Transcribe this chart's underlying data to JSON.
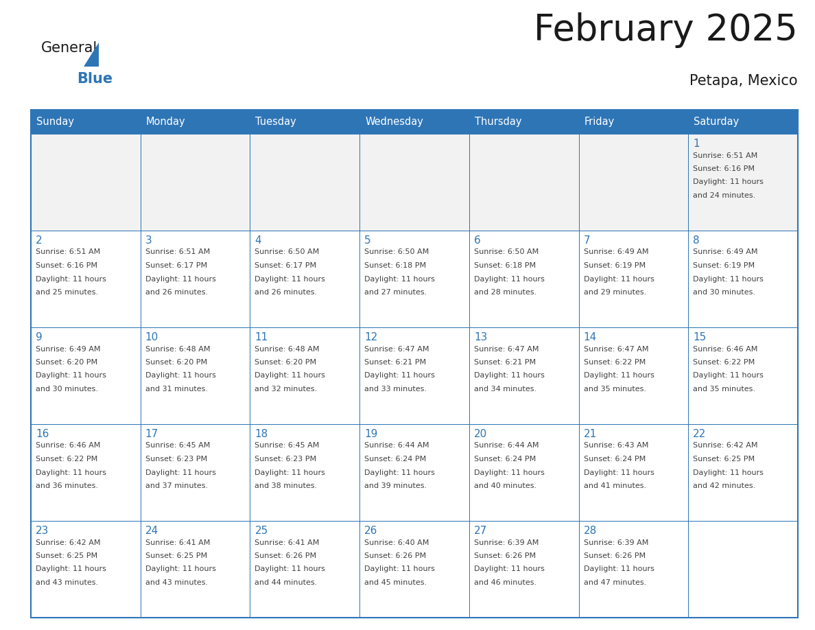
{
  "title": "February 2025",
  "subtitle": "Petapa, Mexico",
  "header_bg_color": "#2E75B6",
  "header_text_color": "#FFFFFF",
  "cell_border_color": "#2E75B6",
  "day_number_color": "#2E75B6",
  "info_text_color": "#404040",
  "background_color": "#FFFFFF",
  "days_of_week": [
    "Sunday",
    "Monday",
    "Tuesday",
    "Wednesday",
    "Thursday",
    "Friday",
    "Saturday"
  ],
  "calendar_data": [
    [
      {
        "day": null,
        "sunrise": null,
        "sunset": null,
        "daylight": null
      },
      {
        "day": null,
        "sunrise": null,
        "sunset": null,
        "daylight": null
      },
      {
        "day": null,
        "sunrise": null,
        "sunset": null,
        "daylight": null
      },
      {
        "day": null,
        "sunrise": null,
        "sunset": null,
        "daylight": null
      },
      {
        "day": null,
        "sunrise": null,
        "sunset": null,
        "daylight": null
      },
      {
        "day": null,
        "sunrise": null,
        "sunset": null,
        "daylight": null
      },
      {
        "day": 1,
        "sunrise": "6:51 AM",
        "sunset": "6:16 PM",
        "daylight": "11 hours and 24 minutes."
      }
    ],
    [
      {
        "day": 2,
        "sunrise": "6:51 AM",
        "sunset": "6:16 PM",
        "daylight": "11 hours and 25 minutes."
      },
      {
        "day": 3,
        "sunrise": "6:51 AM",
        "sunset": "6:17 PM",
        "daylight": "11 hours and 26 minutes."
      },
      {
        "day": 4,
        "sunrise": "6:50 AM",
        "sunset": "6:17 PM",
        "daylight": "11 hours and 26 minutes."
      },
      {
        "day": 5,
        "sunrise": "6:50 AM",
        "sunset": "6:18 PM",
        "daylight": "11 hours and 27 minutes."
      },
      {
        "day": 6,
        "sunrise": "6:50 AM",
        "sunset": "6:18 PM",
        "daylight": "11 hours and 28 minutes."
      },
      {
        "day": 7,
        "sunrise": "6:49 AM",
        "sunset": "6:19 PM",
        "daylight": "11 hours and 29 minutes."
      },
      {
        "day": 8,
        "sunrise": "6:49 AM",
        "sunset": "6:19 PM",
        "daylight": "11 hours and 30 minutes."
      }
    ],
    [
      {
        "day": 9,
        "sunrise": "6:49 AM",
        "sunset": "6:20 PM",
        "daylight": "11 hours and 30 minutes."
      },
      {
        "day": 10,
        "sunrise": "6:48 AM",
        "sunset": "6:20 PM",
        "daylight": "11 hours and 31 minutes."
      },
      {
        "day": 11,
        "sunrise": "6:48 AM",
        "sunset": "6:20 PM",
        "daylight": "11 hours and 32 minutes."
      },
      {
        "day": 12,
        "sunrise": "6:47 AM",
        "sunset": "6:21 PM",
        "daylight": "11 hours and 33 minutes."
      },
      {
        "day": 13,
        "sunrise": "6:47 AM",
        "sunset": "6:21 PM",
        "daylight": "11 hours and 34 minutes."
      },
      {
        "day": 14,
        "sunrise": "6:47 AM",
        "sunset": "6:22 PM",
        "daylight": "11 hours and 35 minutes."
      },
      {
        "day": 15,
        "sunrise": "6:46 AM",
        "sunset": "6:22 PM",
        "daylight": "11 hours and 35 minutes."
      }
    ],
    [
      {
        "day": 16,
        "sunrise": "6:46 AM",
        "sunset": "6:22 PM",
        "daylight": "11 hours and 36 minutes."
      },
      {
        "day": 17,
        "sunrise": "6:45 AM",
        "sunset": "6:23 PM",
        "daylight": "11 hours and 37 minutes."
      },
      {
        "day": 18,
        "sunrise": "6:45 AM",
        "sunset": "6:23 PM",
        "daylight": "11 hours and 38 minutes."
      },
      {
        "day": 19,
        "sunrise": "6:44 AM",
        "sunset": "6:24 PM",
        "daylight": "11 hours and 39 minutes."
      },
      {
        "day": 20,
        "sunrise": "6:44 AM",
        "sunset": "6:24 PM",
        "daylight": "11 hours and 40 minutes."
      },
      {
        "day": 21,
        "sunrise": "6:43 AM",
        "sunset": "6:24 PM",
        "daylight": "11 hours and 41 minutes."
      },
      {
        "day": 22,
        "sunrise": "6:42 AM",
        "sunset": "6:25 PM",
        "daylight": "11 hours and 42 minutes."
      }
    ],
    [
      {
        "day": 23,
        "sunrise": "6:42 AM",
        "sunset": "6:25 PM",
        "daylight": "11 hours and 43 minutes."
      },
      {
        "day": 24,
        "sunrise": "6:41 AM",
        "sunset": "6:25 PM",
        "daylight": "11 hours and 43 minutes."
      },
      {
        "day": 25,
        "sunrise": "6:41 AM",
        "sunset": "6:26 PM",
        "daylight": "11 hours and 44 minutes."
      },
      {
        "day": 26,
        "sunrise": "6:40 AM",
        "sunset": "6:26 PM",
        "daylight": "11 hours and 45 minutes."
      },
      {
        "day": 27,
        "sunrise": "6:39 AM",
        "sunset": "6:26 PM",
        "daylight": "11 hours and 46 minutes."
      },
      {
        "day": 28,
        "sunrise": "6:39 AM",
        "sunset": "6:26 PM",
        "daylight": "11 hours and 47 minutes."
      },
      {
        "day": null,
        "sunrise": null,
        "sunset": null,
        "daylight": null
      }
    ]
  ],
  "logo_general_color": "#1a1a1a",
  "logo_blue_color": "#2E75B6",
  "title_color": "#1a1a1a",
  "subtitle_color": "#1a1a1a"
}
